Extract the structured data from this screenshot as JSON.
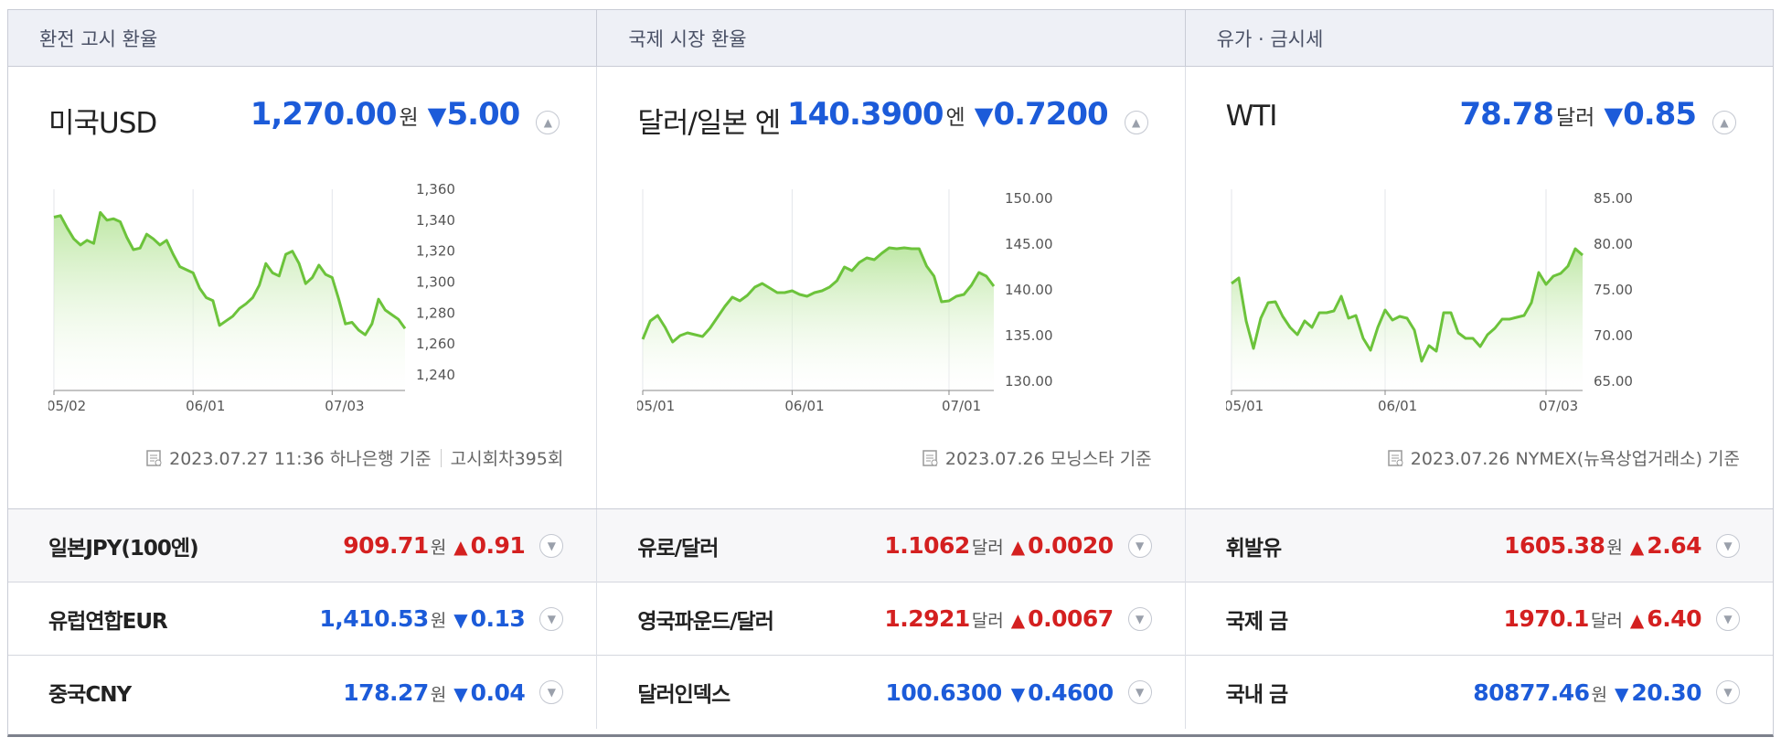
{
  "tabs": [
    {
      "label": "환전 고시 환율"
    },
    {
      "label": "국제 시장 환율"
    },
    {
      "label": "유가 · 금시세"
    }
  ],
  "panels": [
    {
      "title": "미국USD",
      "value": "1,270.00",
      "unit": "원",
      "direction": "down",
      "change_symbol": "▼",
      "change": "5.00",
      "footer_date": "2023.07.27 11:36 하나은행 기준",
      "footer_extra": "고시회차395회"
    },
    {
      "title": "달러/일본 엔",
      "value": "140.3900",
      "unit": "엔",
      "direction": "down",
      "change_symbol": "▼",
      "change": "0.7200",
      "footer_date": "2023.07.26 모닝스타 기준",
      "footer_extra": ""
    },
    {
      "title": "WTI",
      "value": "78.78",
      "unit": "달러",
      "direction": "down",
      "change_symbol": "▼",
      "change": "0.85",
      "footer_date": "2023.07.26 NYMEX(뉴욕상업거래소) 기준",
      "footer_extra": ""
    }
  ],
  "rows": [
    [
      {
        "label": "일본JPY(100엔)",
        "value": "909.71",
        "unit": "원",
        "direction": "up",
        "change_symbol": "▲",
        "change": "0.91"
      },
      {
        "label": "유럽연합EUR",
        "value": "1,410.53",
        "unit": "원",
        "direction": "down",
        "change_symbol": "▼",
        "change": "0.13"
      },
      {
        "label": "중국CNY",
        "value": "178.27",
        "unit": "원",
        "direction": "down",
        "change_symbol": "▼",
        "change": "0.04"
      }
    ],
    [
      {
        "label": "유로/달러",
        "value": "1.1062",
        "unit": "달러",
        "direction": "up",
        "change_symbol": "▲",
        "change": "0.0020"
      },
      {
        "label": "영국파운드/달러",
        "value": "1.2921",
        "unit": "달러",
        "direction": "up",
        "change_symbol": "▲",
        "change": "0.0067"
      },
      {
        "label": "달러인덱스",
        "value": "100.6300",
        "unit": "",
        "direction": "down",
        "change_symbol": "▼",
        "change": "0.4600"
      }
    ],
    [
      {
        "label": "휘발유",
        "value": "1605.38",
        "unit": "원",
        "direction": "up",
        "change_symbol": "▲",
        "change": "2.64"
      },
      {
        "label": "국제 금",
        "value": "1970.1",
        "unit": "달러",
        "direction": "up",
        "change_symbol": "▲",
        "change": "6.40"
      },
      {
        "label": "국내 금",
        "value": "80877.46",
        "unit": "원",
        "direction": "down",
        "change_symbol": "▼",
        "change": "20.30"
      }
    ]
  ],
  "colors": {
    "up": "#d42020",
    "down": "#1c5bd9",
    "line": "#6cc33b"
  },
  "chart_data": [
    {
      "type": "area",
      "title": "",
      "x_ticks": [
        "05/02",
        "06/01",
        "07/03"
      ],
      "x_tick_index": [
        0,
        21,
        42
      ],
      "ylim": [
        1230,
        1360
      ],
      "y_ticks": [
        "1,360",
        "1,340",
        "1,320",
        "1,300",
        "1,280",
        "1,260",
        "1,240"
      ],
      "y_tick_values": [
        1360,
        1340,
        1320,
        1300,
        1280,
        1260,
        1240
      ],
      "values": [
        1342,
        1343,
        1335,
        1328,
        1324,
        1327,
        1325,
        1345,
        1340,
        1341,
        1339,
        1329,
        1321,
        1322,
        1331,
        1328,
        1324,
        1327,
        1318,
        1310,
        1308,
        1306,
        1296,
        1290,
        1288,
        1272,
        1275,
        1278,
        1283,
        1286,
        1290,
        1298,
        1312,
        1306,
        1304,
        1318,
        1320,
        1312,
        1299,
        1303,
        1311,
        1305,
        1303,
        1289,
        1273,
        1274,
        1269,
        1266,
        1273,
        1289,
        1282,
        1279,
        1276,
        1270
      ]
    },
    {
      "type": "area",
      "title": "",
      "x_ticks": [
        "05/01",
        "06/01",
        "07/01"
      ],
      "x_tick_index": [
        0,
        20,
        41
      ],
      "ylim": [
        129,
        151
      ],
      "y_ticks": [
        "150.00",
        "145.00",
        "140.00",
        "135.00",
        "130.00"
      ],
      "y_tick_values": [
        150,
        145,
        140,
        135,
        130
      ],
      "values": [
        134.6,
        136.6,
        137.2,
        135.9,
        134.3,
        135.0,
        135.3,
        135.1,
        134.9,
        135.8,
        137.0,
        138.2,
        139.2,
        138.8,
        139.4,
        140.3,
        140.7,
        140.2,
        139.7,
        139.7,
        139.9,
        139.5,
        139.3,
        139.7,
        139.9,
        140.3,
        141.0,
        142.5,
        142.1,
        143.0,
        143.5,
        143.3,
        144.0,
        144.6,
        144.5,
        144.6,
        144.5,
        144.5,
        142.6,
        141.5,
        138.7,
        138.8,
        139.3,
        139.5,
        140.5,
        141.9,
        141.5,
        140.4
      ]
    },
    {
      "type": "area",
      "title": "",
      "x_ticks": [
        "05/01",
        "06/01",
        "07/03"
      ],
      "x_tick_index": [
        0,
        21,
        43
      ],
      "ylim": [
        64,
        86
      ],
      "y_ticks": [
        "85.00",
        "80.00",
        "75.00",
        "70.00",
        "65.00"
      ],
      "y_tick_values": [
        85,
        80,
        75,
        70,
        65
      ],
      "values": [
        75.7,
        76.3,
        71.6,
        68.6,
        71.9,
        73.6,
        73.7,
        72.1,
        70.9,
        70.1,
        71.6,
        70.9,
        72.5,
        72.5,
        72.7,
        74.3,
        71.9,
        72.2,
        69.7,
        68.4,
        70.9,
        72.8,
        71.7,
        72.1,
        71.9,
        70.6,
        67.2,
        68.9,
        68.3,
        72.5,
        72.5,
        70.3,
        69.7,
        69.7,
        68.8,
        70.1,
        70.8,
        71.8,
        71.8,
        72.0,
        72.2,
        73.6,
        76.9,
        75.6,
        76.5,
        76.8,
        77.6,
        79.5,
        78.8
      ]
    }
  ]
}
